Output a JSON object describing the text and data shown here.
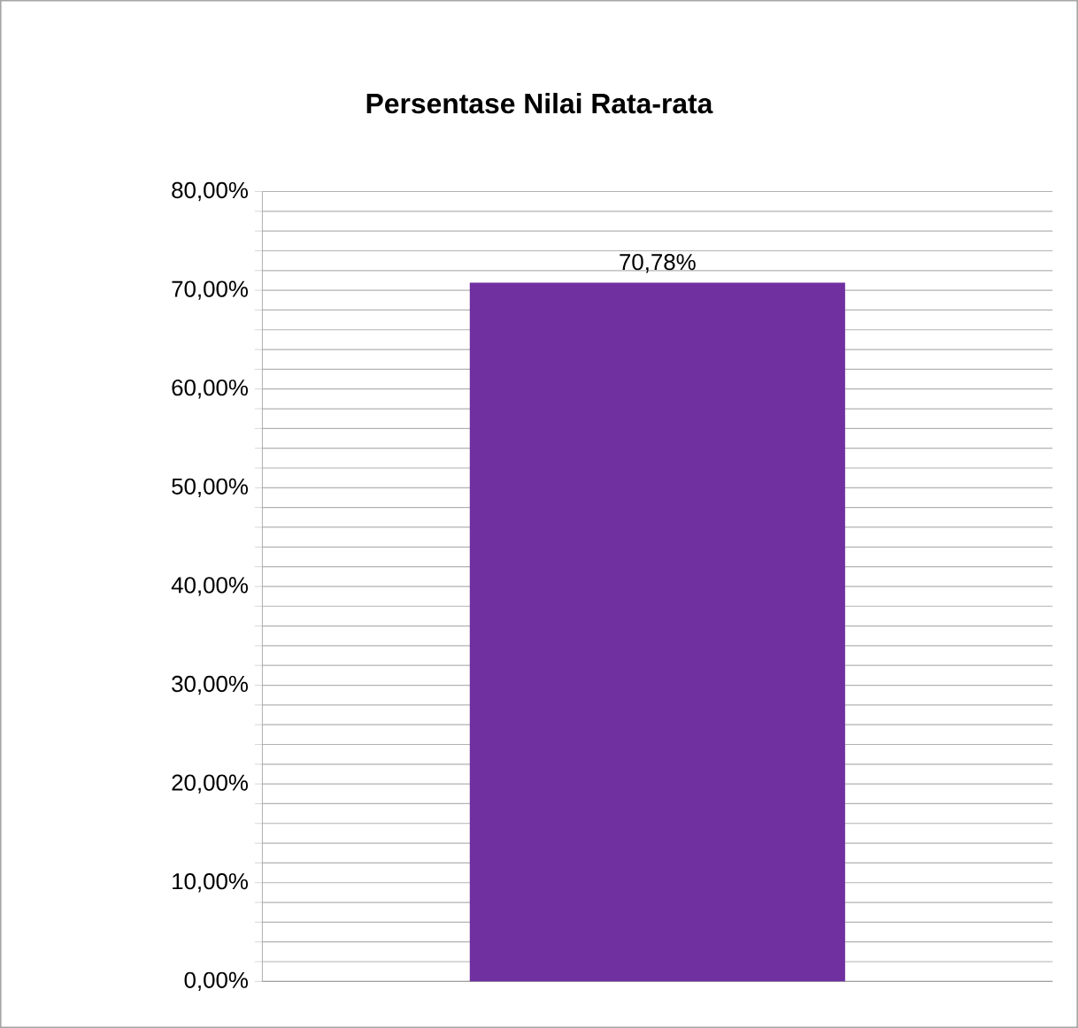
{
  "chart_data": {
    "type": "bar",
    "title": "Persentase Nilai Rata-rata",
    "categories": [
      null
    ],
    "values": [
      70.78
    ],
    "value_labels": [
      "70,78%"
    ],
    "color": "#7030a0",
    "ylim": [
      0,
      80
    ],
    "yticks": [
      {
        "value": 0,
        "label": "0,00%"
      },
      {
        "value": 2,
        "label": null
      },
      {
        "value": 4,
        "label": null
      },
      {
        "value": 6,
        "label": null
      },
      {
        "value": 8,
        "label": null
      },
      {
        "value": 10,
        "label": "10,00%"
      },
      {
        "value": 12,
        "label": null
      },
      {
        "value": 14,
        "label": null
      },
      {
        "value": 16,
        "label": null
      },
      {
        "value": 18,
        "label": null
      },
      {
        "value": 20,
        "label": "20,00%"
      },
      {
        "value": 22,
        "label": null
      },
      {
        "value": 24,
        "label": null
      },
      {
        "value": 26,
        "label": null
      },
      {
        "value": 28,
        "label": null
      },
      {
        "value": 30,
        "label": "30,00%"
      },
      {
        "value": 32,
        "label": null
      },
      {
        "value": 34,
        "label": null
      },
      {
        "value": 36,
        "label": null
      },
      {
        "value": 38,
        "label": null
      },
      {
        "value": 40,
        "label": "40,00%"
      },
      {
        "value": 42,
        "label": null
      },
      {
        "value": 44,
        "label": null
      },
      {
        "value": 46,
        "label": null
      },
      {
        "value": 48,
        "label": null
      },
      {
        "value": 50,
        "label": "50,00%"
      },
      {
        "value": 52,
        "label": null
      },
      {
        "value": 54,
        "label": null
      },
      {
        "value": 56,
        "label": null
      },
      {
        "value": 58,
        "label": null
      },
      {
        "value": 60,
        "label": "60,00%"
      },
      {
        "value": 62,
        "label": null
      },
      {
        "value": 64,
        "label": null
      },
      {
        "value": 66,
        "label": null
      },
      {
        "value": 68,
        "label": null
      },
      {
        "value": 70,
        "label": "70,00%"
      },
      {
        "value": 72,
        "label": null
      },
      {
        "value": 74,
        "label": null
      },
      {
        "value": 76,
        "label": null
      },
      {
        "value": 78,
        "label": null
      },
      {
        "value": 80,
        "label": "80,00%"
      }
    ],
    "grid": true
  }
}
